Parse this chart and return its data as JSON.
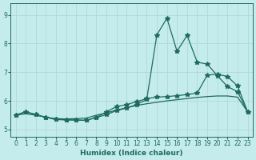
{
  "xlabel": "Humidex (Indice chaleur)",
  "xlim": [
    -0.5,
    23.5
  ],
  "ylim": [
    4.75,
    9.4
  ],
  "yticks": [
    5,
    6,
    7,
    8,
    9
  ],
  "xticks": [
    0,
    1,
    2,
    3,
    4,
    5,
    6,
    7,
    8,
    9,
    10,
    11,
    12,
    13,
    14,
    15,
    16,
    17,
    18,
    19,
    20,
    21,
    22,
    23
  ],
  "bg_color": "#c5eced",
  "line_color": "#1e6b5e",
  "grid_color": "#b0d8d8",
  "series1_x": [
    0,
    1,
    2,
    3,
    4,
    5,
    6,
    7,
    8,
    9,
    10,
    11,
    12,
    13,
    14,
    15,
    16,
    17,
    18,
    19,
    20,
    21,
    22,
    23
  ],
  "series1_y": [
    5.5,
    5.55,
    5.5,
    5.43,
    5.38,
    5.37,
    5.38,
    5.4,
    5.5,
    5.58,
    5.68,
    5.76,
    5.84,
    5.9,
    5.95,
    6.0,
    6.04,
    6.08,
    6.12,
    6.15,
    6.17,
    6.17,
    6.13,
    5.62
  ],
  "series2_x": [
    0,
    1,
    2,
    3,
    4,
    5,
    6,
    7,
    8,
    9,
    10,
    11,
    12,
    13,
    14,
    15,
    16,
    17,
    18,
    19,
    20,
    21,
    22,
    23
  ],
  "series2_y": [
    5.5,
    5.62,
    5.52,
    5.43,
    5.35,
    5.34,
    5.33,
    5.32,
    5.42,
    5.52,
    5.66,
    5.75,
    5.87,
    6.05,
    8.3,
    8.88,
    7.73,
    8.28,
    7.35,
    7.28,
    6.88,
    6.5,
    6.32,
    5.62
  ],
  "series3_x": [
    0,
    1,
    2,
    3,
    4,
    5,
    6,
    7,
    8,
    9,
    10,
    11,
    12,
    13,
    14,
    15,
    16,
    17,
    18,
    19,
    20,
    21,
    22,
    23
  ],
  "series3_y": [
    5.5,
    5.62,
    5.52,
    5.43,
    5.35,
    5.34,
    5.33,
    5.32,
    5.42,
    5.62,
    5.8,
    5.87,
    5.97,
    6.08,
    6.13,
    6.15,
    6.18,
    6.22,
    6.27,
    6.9,
    6.93,
    6.85,
    6.52,
    5.62
  ],
  "marker": "*",
  "markersize": 4
}
